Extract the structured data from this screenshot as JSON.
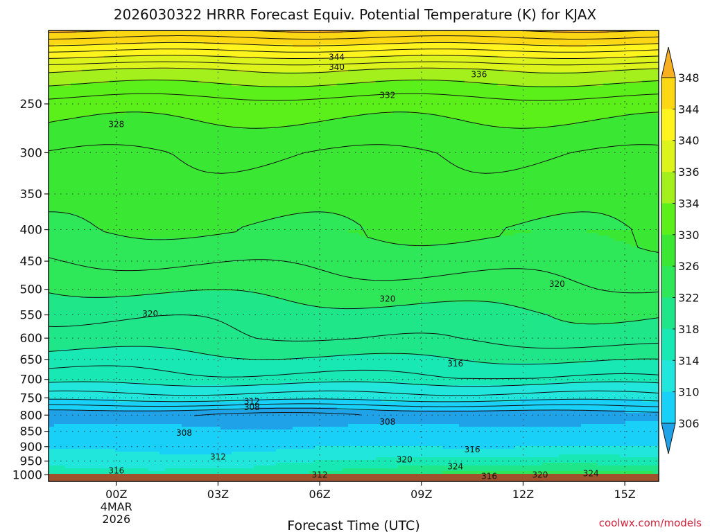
{
  "title": "2026030322 HRRR Forecast Equiv. Potential Temperature (K) for KJAX",
  "x_axis_label": "Forecast Time (UTC)",
  "credit": "coolwx.com/models",
  "colors": {
    "ground": "#a0522d",
    "contour_line": "#111111"
  },
  "chart_data": {
    "type": "heatmap",
    "variable": "Equivalent Potential Temperature (K)",
    "x_ticks": [
      {
        "label": "00Z",
        "sub": [
          "4MAR",
          "2026"
        ],
        "hour": 0
      },
      {
        "label": "03Z",
        "hour": 3
      },
      {
        "label": "06Z",
        "hour": 6
      },
      {
        "label": "09Z",
        "hour": 9
      },
      {
        "label": "12Z",
        "hour": 12
      },
      {
        "label": "15Z",
        "hour": 15
      }
    ],
    "x_range_hours": [
      -2,
      16
    ],
    "y_ticks": [
      250,
      300,
      350,
      400,
      450,
      500,
      550,
      600,
      650,
      700,
      750,
      800,
      850,
      900,
      950,
      1000
    ],
    "y_range_hpa": [
      190,
      1025
    ],
    "y_scale": "log",
    "colorbar": {
      "ticks": [
        306,
        310,
        314,
        318,
        322,
        326,
        330,
        334,
        336,
        340,
        344,
        348
      ],
      "colors": [
        {
          "lo": 302,
          "hi": 306,
          "color": "#1fa2e8"
        },
        {
          "lo": 306,
          "hi": 310,
          "color": "#18d0f8"
        },
        {
          "lo": 310,
          "hi": 314,
          "color": "#20e6dc"
        },
        {
          "lo": 314,
          "hi": 318,
          "color": "#18e8b4"
        },
        {
          "lo": 318,
          "hi": 322,
          "color": "#20e68a"
        },
        {
          "lo": 322,
          "hi": 326,
          "color": "#2ee85a"
        },
        {
          "lo": 326,
          "hi": 330,
          "color": "#3ae834"
        },
        {
          "lo": 330,
          "hi": 334,
          "color": "#5cf01a"
        },
        {
          "lo": 334,
          "hi": 336,
          "color": "#a4f01c"
        },
        {
          "lo": 336,
          "hi": 340,
          "color": "#dcf41c"
        },
        {
          "lo": 340,
          "hi": 344,
          "color": "#fff41e"
        },
        {
          "lo": 344,
          "hi": 348,
          "color": "#fcd814"
        },
        {
          "lo": 348,
          "hi": 352,
          "color": "#f8b020"
        }
      ]
    },
    "profile_hour0": [
      {
        "p": 1000,
        "theta_e": 316
      },
      {
        "p": 950,
        "theta_e": 312
      },
      {
        "p": 900,
        "theta_e": 309
      },
      {
        "p": 850,
        "theta_e": 307
      },
      {
        "p": 800,
        "theta_e": 305
      },
      {
        "p": 750,
        "theta_e": 311
      },
      {
        "p": 700,
        "theta_e": 315
      },
      {
        "p": 650,
        "theta_e": 317
      },
      {
        "p": 600,
        "theta_e": 319
      },
      {
        "p": 550,
        "theta_e": 320
      },
      {
        "p": 500,
        "theta_e": 322
      },
      {
        "p": 450,
        "theta_e": 324
      },
      {
        "p": 400,
        "theta_e": 326
      },
      {
        "p": 350,
        "theta_e": 327
      },
      {
        "p": 300,
        "theta_e": 328
      },
      {
        "p": 250,
        "theta_e": 331
      },
      {
        "p": 220,
        "theta_e": 336
      },
      {
        "p": 200,
        "theta_e": 344
      }
    ],
    "contour_labels": [
      {
        "text": "344",
        "hour": 6.5,
        "p": 210
      },
      {
        "text": "340",
        "hour": 6.5,
        "p": 218
      },
      {
        "text": "336",
        "hour": 10.7,
        "p": 224
      },
      {
        "text": "332",
        "hour": 8,
        "p": 242
      },
      {
        "text": "328",
        "hour": 0,
        "p": 270
      },
      {
        "text": "320",
        "hour": 1,
        "p": 548
      },
      {
        "text": "320",
        "hour": 8,
        "p": 518
      },
      {
        "text": "320",
        "hour": 13,
        "p": 490
      },
      {
        "text": "316",
        "hour": 10,
        "p": 660
      },
      {
        "text": "312",
        "hour": 4,
        "p": 760
      },
      {
        "text": "308",
        "hour": 4,
        "p": 777
      },
      {
        "text": "308",
        "hour": 8,
        "p": 820
      },
      {
        "text": "308",
        "hour": 2,
        "p": 855
      },
      {
        "text": "312",
        "hour": 3,
        "p": 935
      },
      {
        "text": "316",
        "hour": 10.5,
        "p": 910
      },
      {
        "text": "320",
        "hour": 8.5,
        "p": 945
      },
      {
        "text": "324",
        "hour": 10,
        "p": 970
      },
      {
        "text": "316",
        "hour": 0,
        "p": 985
      },
      {
        "text": "312",
        "hour": 6,
        "p": 1000
      },
      {
        "text": "316",
        "hour": 11,
        "p": 1005
      },
      {
        "text": "320",
        "hour": 12.5,
        "p": 1000
      },
      {
        "text": "324",
        "hour": 14,
        "p": 995
      }
    ]
  }
}
